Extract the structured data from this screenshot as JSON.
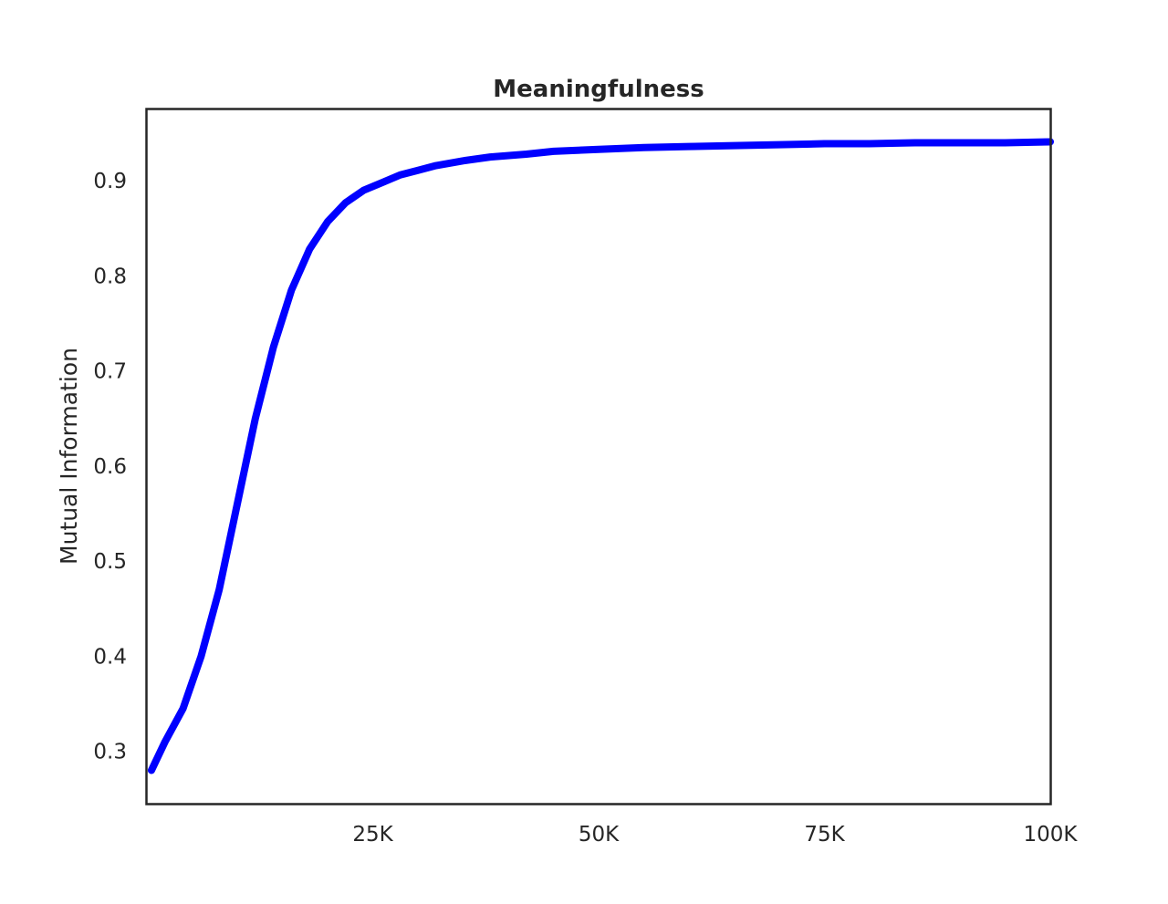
{
  "chart_data": {
    "type": "line",
    "title": "Meaningfulness",
    "xlabel": "",
    "ylabel": "Mutual Information",
    "xlim": [
      0,
      100000
    ],
    "ylim": [
      0.245,
      0.975
    ],
    "grid": false,
    "x_ticks": [
      {
        "value": 25000,
        "label": "25K"
      },
      {
        "value": 50000,
        "label": "50K"
      },
      {
        "value": 75000,
        "label": "75K"
      },
      {
        "value": 100000,
        "label": "100K"
      }
    ],
    "y_ticks": [
      {
        "value": 0.3,
        "label": "0.3"
      },
      {
        "value": 0.4,
        "label": "0.4"
      },
      {
        "value": 0.5,
        "label": "0.5"
      },
      {
        "value": 0.6,
        "label": "0.6"
      },
      {
        "value": 0.7,
        "label": "0.7"
      },
      {
        "value": 0.8,
        "label": "0.8"
      },
      {
        "value": 0.9,
        "label": "0.9"
      }
    ],
    "series": [
      {
        "name": "Mutual Information",
        "color": "#0000ff",
        "x": [
          500,
          2000,
          4000,
          6000,
          8000,
          10000,
          12000,
          14000,
          16000,
          18000,
          20000,
          22000,
          24000,
          26000,
          28000,
          30000,
          32000,
          35000,
          38000,
          42000,
          45000,
          50000,
          55000,
          60000,
          65000,
          70000,
          75000,
          80000,
          85000,
          90000,
          95000,
          100000
        ],
        "y": [
          0.28,
          0.31,
          0.345,
          0.4,
          0.47,
          0.56,
          0.65,
          0.725,
          0.785,
          0.828,
          0.857,
          0.877,
          0.89,
          0.898,
          0.906,
          0.911,
          0.916,
          0.921,
          0.925,
          0.928,
          0.931,
          0.933,
          0.935,
          0.936,
          0.937,
          0.938,
          0.939,
          0.939,
          0.94,
          0.94,
          0.94,
          0.941
        ]
      }
    ]
  }
}
